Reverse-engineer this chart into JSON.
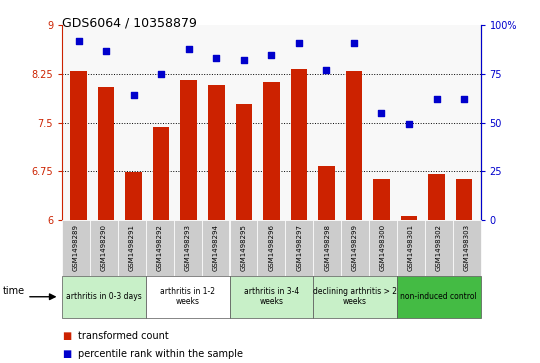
{
  "title": "GDS6064 / 10358879",
  "samples": [
    "GSM1498289",
    "GSM1498290",
    "GSM1498291",
    "GSM1498292",
    "GSM1498293",
    "GSM1498294",
    "GSM1498295",
    "GSM1498296",
    "GSM1498297",
    "GSM1498298",
    "GSM1498299",
    "GSM1498300",
    "GSM1498301",
    "GSM1498302",
    "GSM1498303"
  ],
  "transformed_count": [
    8.3,
    8.05,
    6.73,
    7.43,
    8.15,
    8.08,
    7.78,
    8.12,
    8.33,
    6.83,
    8.3,
    6.62,
    6.05,
    6.7,
    6.63
  ],
  "percentile_rank": [
    92,
    87,
    64,
    75,
    88,
    83,
    82,
    85,
    91,
    77,
    91,
    55,
    49,
    62,
    62
  ],
  "bar_color": "#cc2200",
  "dot_color": "#0000cc",
  "ylim_left": [
    6.0,
    9.0
  ],
  "ylim_right": [
    0,
    100
  ],
  "yticks_left": [
    6.0,
    6.75,
    7.5,
    8.25,
    9.0
  ],
  "ytick_labels_left": [
    "6",
    "6.75",
    "7.5",
    "8.25",
    "9"
  ],
  "yticks_right": [
    0,
    25,
    50,
    75,
    100
  ],
  "ytick_labels_right": [
    "0",
    "25",
    "50",
    "75",
    "100%"
  ],
  "groups": [
    {
      "label": "arthritis in 0-3 days",
      "start": 0,
      "end": 3,
      "color": "#c8f0c8"
    },
    {
      "label": "arthritis in 1-2\nweeks",
      "start": 3,
      "end": 6,
      "color": "#ffffff"
    },
    {
      "label": "arthritis in 3-4\nweeks",
      "start": 6,
      "end": 9,
      "color": "#c8f0c8"
    },
    {
      "label": "declining arthritis > 2\nweeks",
      "start": 9,
      "end": 12,
      "color": "#c8f0c8"
    },
    {
      "label": "non-induced control",
      "start": 12,
      "end": 15,
      "color": "#44bb44"
    }
  ],
  "legend_red": "transformed count",
  "legend_blue": "percentile rank within the sample"
}
